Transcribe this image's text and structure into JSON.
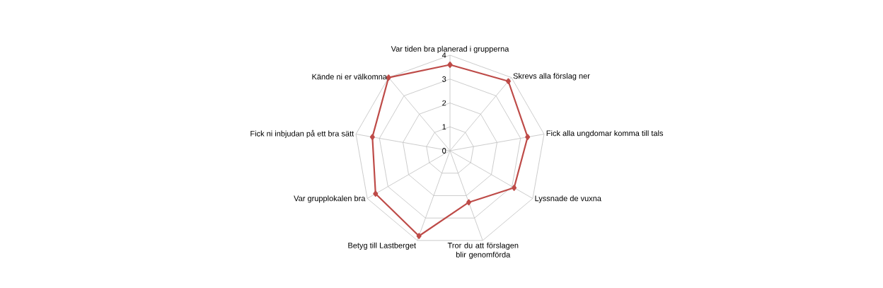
{
  "chart_data": {
    "type": "radar",
    "categories": [
      "Var tiden bra planerad i grupperna",
      "Skrevs alla förslag ner",
      "Fick alla ungdomar komma till tals",
      "Lyssnade de vuxna",
      "Tror du att förslagen blir genomförda",
      "Betyg till Lastberget",
      "Var grupplokalen bra",
      "Fick ni inbjudan på ett bra sätt",
      "Kände ni er välkomna"
    ],
    "series": [
      {
        "color": "#be4b48",
        "values": [
          3.6,
          3.8,
          3.3,
          3.1,
          2.3,
          3.8,
          3.6,
          3.3,
          4
        ]
      }
    ],
    "ylim": [
      0,
      4
    ],
    "yticks": [
      0,
      1,
      2,
      3,
      4
    ],
    "grid": true,
    "marker": "diamond"
  }
}
